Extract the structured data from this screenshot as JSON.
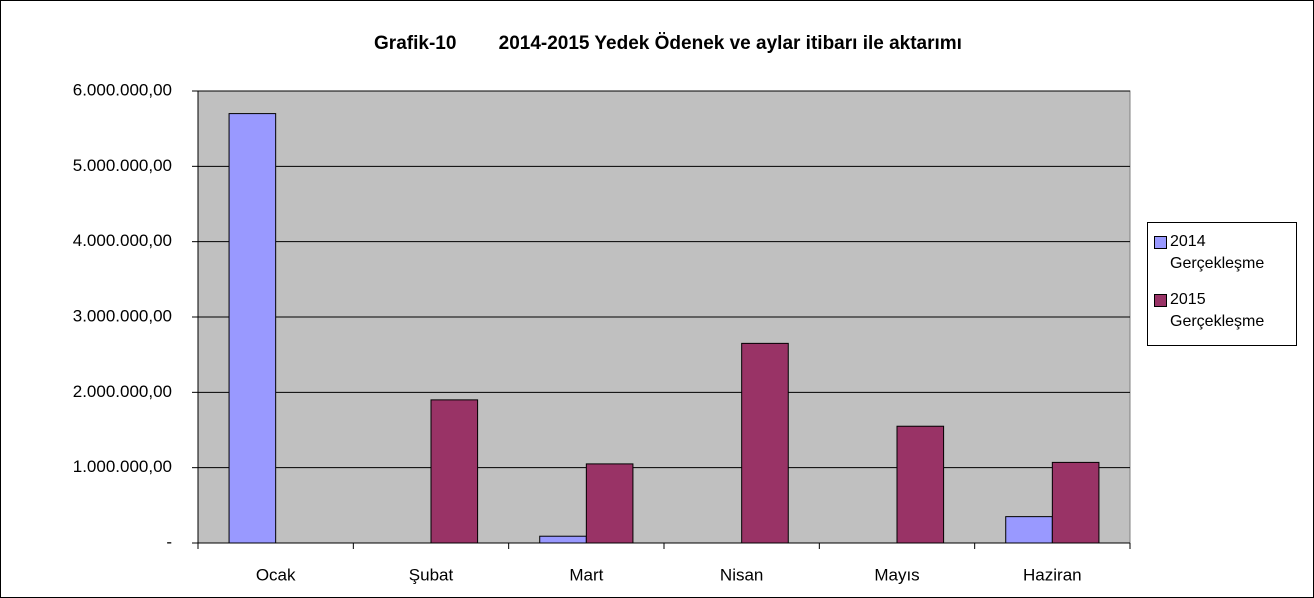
{
  "chart_data": {
    "type": "bar",
    "title": "Grafik-10        2014-2015 Yedek Ödenek ve aylar itibarı ile aktarımı",
    "categories": [
      "Ocak",
      "Şubat",
      "Mart",
      "Nisan",
      "Mayıs",
      "Haziran"
    ],
    "series": [
      {
        "name": "2014 Gerçekleşme",
        "color": "#9999ff",
        "values": [
          5700000,
          0,
          90000,
          0,
          0,
          350000
        ]
      },
      {
        "name": "2015 Gerçekleşme",
        "color": "#993366",
        "values": [
          0,
          1900000,
          1050000,
          2650000,
          1550000,
          1070000
        ]
      }
    ],
    "ylim": [
      0,
      6000000
    ],
    "yticks": [
      {
        "value": 0,
        "label": "-"
      },
      {
        "value": 1000000,
        "label": "1.000.000,00"
      },
      {
        "value": 2000000,
        "label": "2.000.000,00"
      },
      {
        "value": 3000000,
        "label": "3.000.000,00"
      },
      {
        "value": 4000000,
        "label": "4.000.000,00"
      },
      {
        "value": 5000000,
        "label": "5.000.000,00"
      },
      {
        "value": 6000000,
        "label": "6.000.000,00"
      }
    ],
    "grid": true,
    "legend": "right"
  }
}
